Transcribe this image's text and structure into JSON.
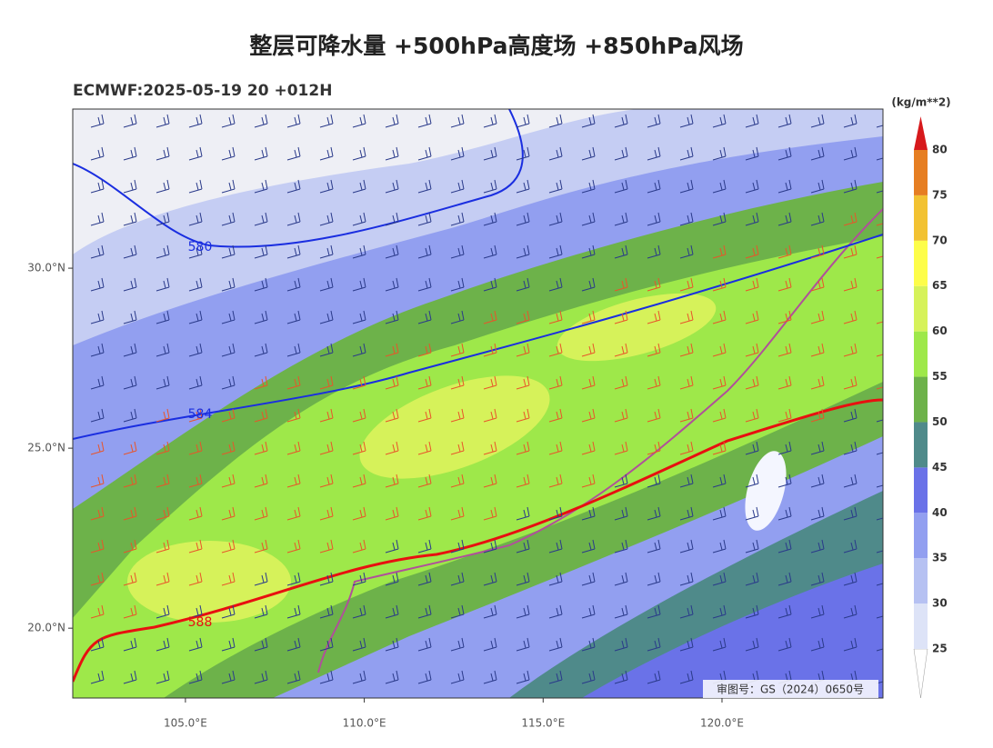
{
  "header": {
    "title": "整层可降水量 +500hPa高度场 +850hPa风场",
    "subtitle": "ECMWF:2025-05-19 20 +012H"
  },
  "map": {
    "lon_range": [
      101.85,
      124.5
    ],
    "lat_range": [
      18.06,
      34.42
    ],
    "lat_ticks": [
      {
        "value": 30,
        "label": "30.0°N"
      },
      {
        "value": 25,
        "label": "25.0°N"
      },
      {
        "value": 20,
        "label": "20.0°N"
      }
    ],
    "lon_ticks": [
      {
        "value": 105,
        "label": "105.0°E"
      },
      {
        "value": 110,
        "label": "110.0°E"
      },
      {
        "value": 115,
        "label": "115.0°E"
      },
      {
        "value": 120,
        "label": "120.0°E"
      }
    ],
    "contours": [
      {
        "label": "580",
        "color": "#1a2ee0"
      },
      {
        "label": "584",
        "color": "#1a2ee0"
      },
      {
        "label": "588",
        "color": "#e81010"
      }
    ],
    "stamp": "审图号：GS（2024）0650号"
  },
  "colorbar": {
    "unit": "(kg/m**2)",
    "levels": [
      25,
      30,
      35,
      40,
      45,
      50,
      55,
      60,
      65,
      70,
      75,
      80
    ],
    "under_color": "#ffffff",
    "over_color": "#d7191c",
    "colors": [
      "#dde3f7",
      "#b6c1f2",
      "#929ff0",
      "#6a72e8",
      "#4f8a8a",
      "#6db24a",
      "#9ee84a",
      "#d6f25a",
      "#fdfd4a",
      "#f2c232",
      "#e67e22"
    ]
  }
}
